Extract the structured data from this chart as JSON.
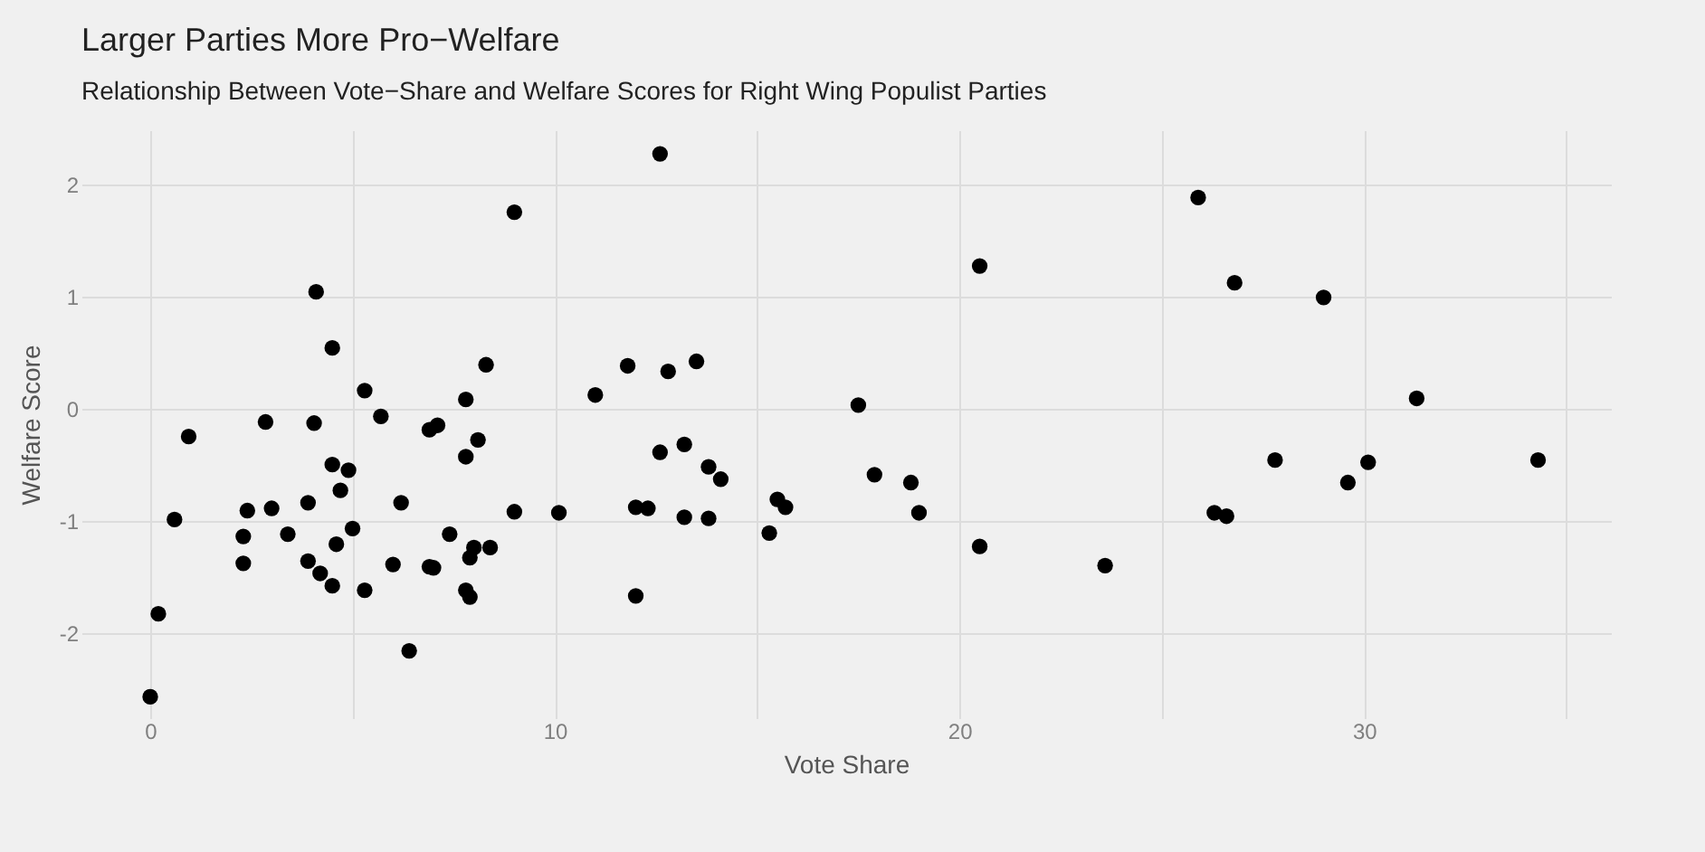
{
  "chart_data": {
    "type": "scatter",
    "title": "Larger Parties More Pro−Welfare",
    "subtitle": "Relationship Between Vote−Share and Welfare Scores for Right Wing Populist Parties",
    "xlabel": "Vote Share",
    "ylabel": "Welfare Score",
    "xlim": [
      -1.7,
      36.1
    ],
    "ylim": [
      -2.76,
      2.48
    ],
    "xticks": [
      0,
      {
        "value": 5,
        "label": null
      },
      10,
      {
        "value": 15,
        "label": null
      },
      20,
      {
        "value": 25,
        "label": null
      },
      30,
      {
        "value": 35,
        "label": null
      }
    ],
    "yticks": [
      -2,
      -1,
      0,
      1,
      2
    ],
    "grid": true,
    "marker": "circle",
    "series": [
      {
        "color": "#000000",
        "x": [
          0,
          0.2,
          0.6,
          0.95,
          2.3,
          2.3,
          2.4,
          2.85,
          3.0,
          3.4,
          3.9,
          3.9,
          4.05,
          4.1,
          4.2,
          4.5,
          4.5,
          4.5,
          4.6,
          4.7,
          4.9,
          5.0,
          5.3,
          5.3,
          5.7,
          6.0,
          6.2,
          6.4,
          6.9,
          7.0,
          6.9,
          7.1,
          7.4,
          7.8,
          7.8,
          7.8,
          7.9,
          7.9,
          8.0,
          8.1,
          8.3,
          8.4,
          9.0,
          9.0,
          10.1,
          11.0,
          11.8,
          12.0,
          12.3,
          12.0,
          12.6,
          12.6,
          12.8,
          13.2,
          13.2,
          13.5,
          13.8,
          13.8,
          14.1,
          15.3,
          15.5,
          15.7,
          17.5,
          17.9,
          18.8,
          19.0,
          20.5,
          20.5,
          23.6,
          25.9,
          26.3,
          26.6,
          26.8,
          27.8,
          29.0,
          29.6,
          30.1,
          31.3,
          34.3
        ],
        "values": [
          -2.57,
          -1.83,
          -0.99,
          -0.25,
          -1.14,
          -1.38,
          -0.91,
          -0.12,
          -0.89,
          -1.12,
          -0.84,
          -1.36,
          -0.13,
          1.04,
          -1.47,
          -0.5,
          0.54,
          -1.58,
          -1.21,
          -0.73,
          -0.55,
          -1.07,
          -1.62,
          0.16,
          -0.07,
          -1.39,
          -0.84,
          -2.16,
          -1.41,
          -1.42,
          -0.19,
          -0.15,
          -1.12,
          0.08,
          -0.43,
          -1.62,
          -1.68,
          -1.33,
          -1.24,
          -0.28,
          0.39,
          -1.24,
          1.75,
          -0.92,
          -0.93,
          0.12,
          0.38,
          -0.88,
          -0.89,
          -1.67,
          2.27,
          -0.39,
          0.33,
          -0.32,
          -0.97,
          0.42,
          -0.52,
          -0.98,
          -0.63,
          -1.11,
          -0.81,
          -0.88,
          0.03,
          -0.59,
          -0.66,
          -0.93,
          1.27,
          -1.23,
          -1.4,
          1.88,
          -0.93,
          -0.96,
          1.12,
          -0.46,
          0.99,
          -0.66,
          -0.48,
          0.09,
          -0.46
        ]
      }
    ]
  }
}
